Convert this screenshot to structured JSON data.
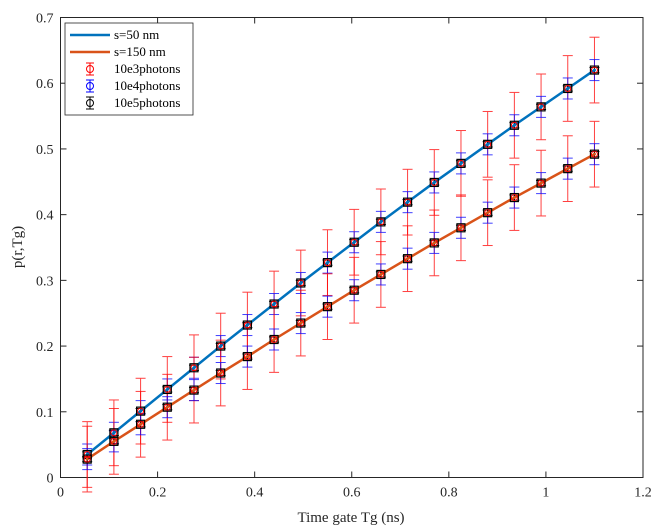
{
  "chart_data": {
    "type": "line",
    "title": "",
    "xlabel": "Time gate Tg (ns)",
    "ylabel": "p(r,Tg)",
    "xlim": [
      0,
      1.2
    ],
    "ylim": [
      0,
      0.7
    ],
    "xticks": [
      "0",
      "0.2",
      "0.4",
      "0.6",
      "0.8",
      "1",
      "1.2"
    ],
    "yticks": [
      "0",
      "0.1",
      "0.2",
      "0.3",
      "0.4",
      "0.5",
      "0.6",
      "0.7"
    ],
    "grid": false,
    "legend_position": "top-left",
    "x": [
      0.055,
      0.11,
      0.165,
      0.22,
      0.275,
      0.33,
      0.385,
      0.44,
      0.495,
      0.55,
      0.605,
      0.66,
      0.715,
      0.77,
      0.825,
      0.88,
      0.935,
      0.99,
      1.045,
      1.1
    ],
    "series": [
      {
        "name": "s=50 nm",
        "color": "#0072bd",
        "values": [
          0.035,
          0.068,
          0.101,
          0.134,
          0.167,
          0.2,
          0.232,
          0.264,
          0.296,
          0.327,
          0.358,
          0.389,
          0.419,
          0.449,
          0.478,
          0.507,
          0.536,
          0.564,
          0.592,
          0.62
        ]
      },
      {
        "name": "s=150 nm",
        "color": "#d95319",
        "values": [
          0.028,
          0.055,
          0.081,
          0.107,
          0.133,
          0.159,
          0.184,
          0.21,
          0.235,
          0.26,
          0.285,
          0.309,
          0.333,
          0.357,
          0.38,
          0.403,
          0.426,
          0.448,
          0.47,
          0.492
        ]
      }
    ],
    "error_series": [
      {
        "name": "10e3photons",
        "color": "#ff0000",
        "error": 0.05
      },
      {
        "name": "10e4photons",
        "color": "#0000ff",
        "error": 0.016
      },
      {
        "name": "10e5photons",
        "color": "#000000",
        "error": 0.004
      }
    ]
  }
}
